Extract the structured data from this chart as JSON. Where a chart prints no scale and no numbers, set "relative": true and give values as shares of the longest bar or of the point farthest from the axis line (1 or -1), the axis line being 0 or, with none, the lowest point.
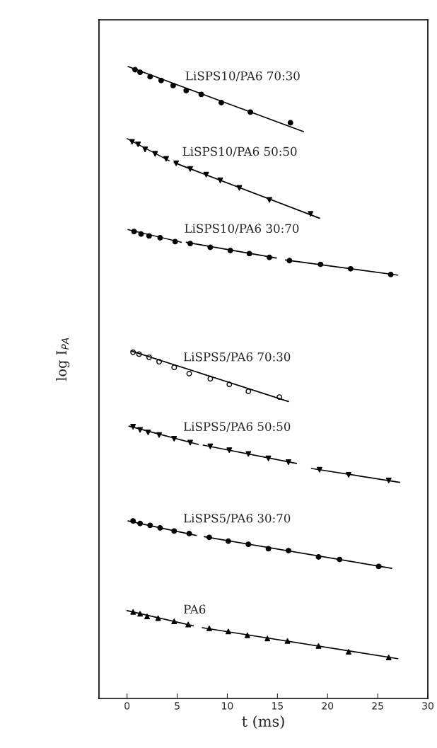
{
  "chart_data": {
    "type": "scatter",
    "relative": true,
    "xlabel": "t (ms)",
    "ylabel": "log I$_{PA}$",
    "xlim": [
      -2.8,
      30
    ],
    "xticks": [
      0,
      5,
      10,
      15,
      20,
      25,
      30
    ],
    "grid": false,
    "legend": false,
    "series": [
      {
        "name": "LiSPS10/PA6 70:30",
        "marker": "circle",
        "color": "#000000",
        "x": [
          0.8,
          1.3,
          2.3,
          3.4,
          4.6,
          5.9,
          7.4,
          9.4,
          12.3,
          16.3
        ],
        "values": [
          0.995,
          0.991,
          0.984,
          0.978,
          0.97,
          0.962,
          0.956,
          0.943,
          0.928,
          0.911
        ]
      },
      {
        "type": "line",
        "color": "#000000",
        "x": [
          0.1,
          17.6
        ],
        "values": [
          1.0,
          0.897
        ]
      },
      {
        "name": "LiSPS10/PA6 50:50",
        "marker": "triangle_down",
        "color": "#000000",
        "x": [
          0.5,
          1.1,
          1.8,
          2.8,
          3.9,
          4.9,
          6.3,
          7.9,
          9.3,
          11.2,
          14.2,
          18.3
        ],
        "values": [
          0.881,
          0.877,
          0.869,
          0.862,
          0.854,
          0.847,
          0.838,
          0.829,
          0.82,
          0.808,
          0.789,
          0.767
        ]
      },
      {
        "type": "line",
        "color": "#000000",
        "x": [
          0.0,
          4.2,
          null,
          4.7,
          19.2
        ],
        "values": [
          0.886,
          0.851,
          null,
          0.848,
          0.76
        ]
      },
      {
        "name": "LiSPS10/PA6 30:70",
        "marker": "circle",
        "color": "#000000",
        "x": [
          0.7,
          1.4,
          2.2,
          3.3,
          4.8,
          6.3,
          8.3,
          10.3,
          12.2,
          14.2,
          16.2,
          19.3,
          22.3,
          26.3
        ],
        "values": [
          0.739,
          0.735,
          0.732,
          0.729,
          0.723,
          0.72,
          0.714,
          0.709,
          0.704,
          0.698,
          0.693,
          0.687,
          0.68,
          0.671
        ]
      },
      {
        "type": "line",
        "color": "#000000",
        "x": [
          0.1,
          5.4,
          null,
          5.9,
          14.9,
          null,
          15.8,
          27.0
        ],
        "values": [
          0.742,
          0.722,
          null,
          0.722,
          0.697,
          null,
          0.694,
          0.67
        ]
      },
      {
        "name": "LiSPS5/PA6 70:30",
        "marker": "circle_open",
        "color": "#000000",
        "x": [
          0.6,
          1.2,
          2.2,
          3.2,
          4.7,
          6.2,
          8.3,
          10.2,
          12.1,
          15.2
        ],
        "values": [
          0.548,
          0.545,
          0.54,
          0.533,
          0.524,
          0.514,
          0.506,
          0.497,
          0.486,
          0.477
        ]
      },
      {
        "type": "line",
        "color": "#000000",
        "x": [
          0.4,
          16.1
        ],
        "values": [
          0.55,
          0.47
        ]
      },
      {
        "name": "LiSPS5/PA6 50:50",
        "marker": "triangle_down",
        "color": "#000000",
        "x": [
          0.6,
          1.3,
          2.1,
          3.2,
          4.7,
          6.3,
          8.3,
          10.2,
          12.1,
          14.1,
          16.1,
          19.2,
          22.1,
          26.1
        ],
        "values": [
          0.43,
          0.425,
          0.421,
          0.417,
          0.411,
          0.405,
          0.399,
          0.393,
          0.387,
          0.38,
          0.374,
          0.362,
          0.354,
          0.345
        ]
      },
      {
        "type": "line",
        "color": "#000000",
        "x": [
          0.2,
          7.1,
          null,
          7.6,
          16.9,
          null,
          18.4,
          27.2
        ],
        "values": [
          0.431,
          0.402,
          null,
          0.401,
          0.372,
          null,
          0.364,
          0.342
        ]
      },
      {
        "name": "LiSPS5/PA6 30:70",
        "marker": "circle",
        "color": "#000000",
        "x": [
          0.6,
          1.3,
          2.3,
          3.3,
          4.7,
          6.2,
          8.2,
          10.1,
          12.1,
          14.1,
          16.1,
          19.1,
          21.2,
          25.1
        ],
        "values": [
          0.281,
          0.277,
          0.274,
          0.27,
          0.265,
          0.261,
          0.255,
          0.249,
          0.244,
          0.237,
          0.234,
          0.224,
          0.22,
          0.209
        ]
      },
      {
        "type": "line",
        "color": "#000000",
        "x": [
          0.1,
          6.9,
          null,
          7.7,
          26.4
        ],
        "values": [
          0.281,
          0.258,
          null,
          0.256,
          0.206
        ]
      },
      {
        "name": "PA6",
        "marker": "triangle",
        "color": "#000000",
        "x": [
          0.6,
          1.3,
          2.0,
          3.1,
          4.7,
          6.1,
          8.2,
          10.1,
          12.0,
          14.0,
          16.0,
          19.1,
          22.1,
          26.1
        ],
        "values": [
          0.137,
          0.134,
          0.13,
          0.127,
          0.122,
          0.117,
          0.111,
          0.106,
          0.1,
          0.095,
          0.091,
          0.083,
          0.074,
          0.065
        ]
      },
      {
        "type": "line",
        "color": "#000000",
        "x": [
          0.0,
          6.6,
          null,
          7.5,
          27.0
        ],
        "values": [
          0.139,
          0.115,
          null,
          0.112,
          0.063
        ]
      }
    ]
  }
}
